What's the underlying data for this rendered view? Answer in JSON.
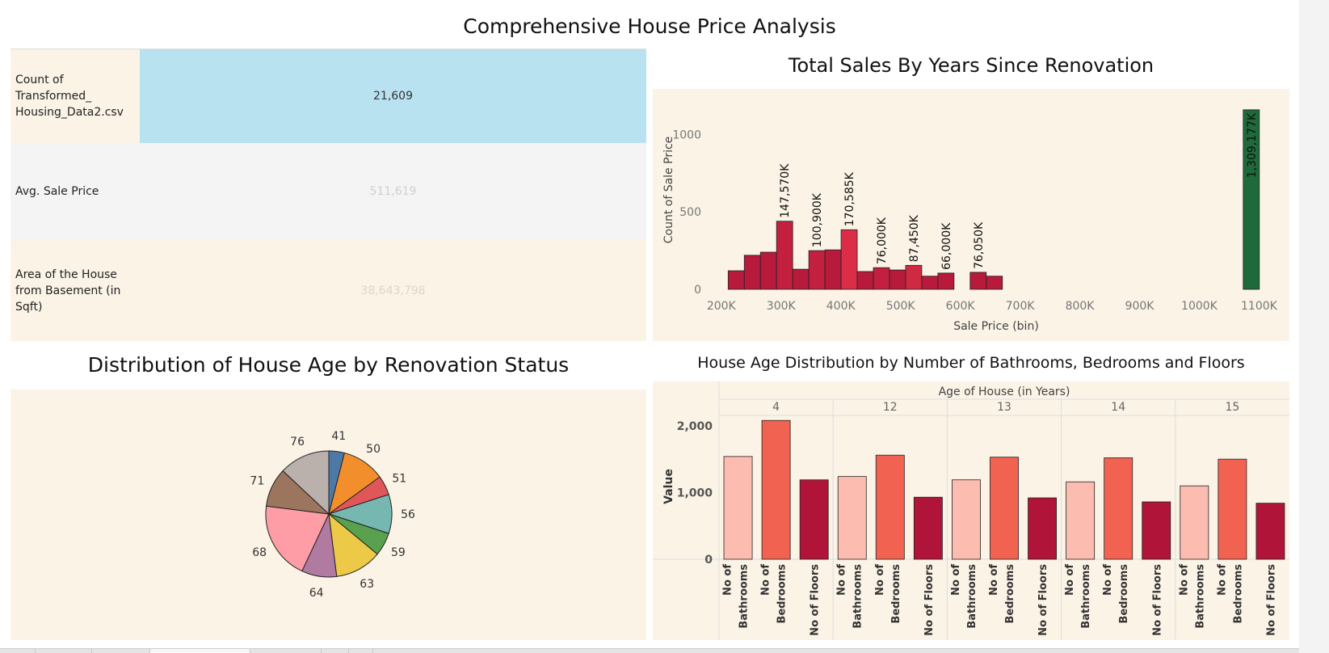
{
  "dashboard": {
    "title": "Comprehensive House Price Analysis"
  },
  "kpis": [
    {
      "label": "Count of Transformed_ Housing_Data2.csv",
      "value": "21,609",
      "bg": "#b9e2f1",
      "label_bg": "#faf3e6",
      "value_color": "#333333"
    },
    {
      "label": "Avg. Sale Price",
      "value": "511,619",
      "bg": "#f4f4f4",
      "label_bg": "#f4f4f4",
      "value_color": "#cfcfcf"
    },
    {
      "label": "Area of the House from Basement (in Sqft)",
      "value": "38,643,798",
      "bg": "#faf3e6",
      "label_bg": "#faf3e6",
      "value_color": "#dcd6cc"
    }
  ],
  "chart_data": [
    {
      "type": "bar",
      "title": "Total Sales By Years Since Renovation",
      "xlabel": "Sale Price (bin)",
      "ylabel": "Count of Sale Price",
      "x_ticks": [
        "200K",
        "300K",
        "400K",
        "500K",
        "600K",
        "700K",
        "800K",
        "900K",
        "1000K",
        "1100K"
      ],
      "x_tick_values": [
        200,
        300,
        400,
        500,
        600,
        700,
        800,
        900,
        1000,
        1100
      ],
      "y_ticks": [
        "0",
        "500",
        "1000"
      ],
      "y_tick_values": [
        0,
        500,
        1000
      ],
      "xlim": [
        180,
        1140
      ],
      "ylim": [
        0,
        1180
      ],
      "bin_width": 27,
      "bins": [
        {
          "x": 225,
          "count": 120,
          "color": "#b71a3a"
        },
        {
          "x": 252,
          "count": 220,
          "color": "#b71a3a"
        },
        {
          "x": 279,
          "count": 240,
          "color": "#b71a3a"
        },
        {
          "x": 306,
          "count": 440,
          "color": "#c3203f",
          "label": "147,570K"
        },
        {
          "x": 333,
          "count": 130,
          "color": "#b71a3a"
        },
        {
          "x": 360,
          "count": 250,
          "color": "#c3203f",
          "label": "100,900K"
        },
        {
          "x": 387,
          "count": 255,
          "color": "#b71a3a"
        },
        {
          "x": 414,
          "count": 385,
          "color": "#db2d45",
          "label": "170,585K"
        },
        {
          "x": 441,
          "count": 115,
          "color": "#b71a3a"
        },
        {
          "x": 468,
          "count": 140,
          "color": "#c3203f",
          "label": "76,000K"
        },
        {
          "x": 495,
          "count": 125,
          "color": "#b71a3a"
        },
        {
          "x": 522,
          "count": 155,
          "color": "#cf2a41",
          "label": "87,450K"
        },
        {
          "x": 549,
          "count": 85,
          "color": "#b71a3a"
        },
        {
          "x": 576,
          "count": 105,
          "color": "#b71a3a",
          "label": "66,000K"
        },
        {
          "x": 630,
          "count": 110,
          "color": "#b71a3a",
          "label": "76,050K"
        },
        {
          "x": 657,
          "count": 85,
          "color": "#b71a3a"
        },
        {
          "x": 1087,
          "count": 1160,
          "color": "#1f6a3a",
          "label": "1,309,177K",
          "label_inside": true
        }
      ]
    },
    {
      "type": "pie",
      "title": "Distribution of House Age by Renovation Status",
      "slices": [
        {
          "label": "41",
          "value": 4,
          "color": "#4e79a7"
        },
        {
          "label": "50",
          "value": 11,
          "color": "#f28e2b"
        },
        {
          "label": "51",
          "value": 5,
          "color": "#e15759"
        },
        {
          "label": "56",
          "value": 10,
          "color": "#76b7b2"
        },
        {
          "label": "59",
          "value": 6,
          "color": "#59a14f"
        },
        {
          "label": "63",
          "value": 12,
          "color": "#edc948"
        },
        {
          "label": "64",
          "value": 9,
          "color": "#b07aa1"
        },
        {
          "label": "68",
          "value": 20,
          "color": "#ff9da7"
        },
        {
          "label": "71",
          "value": 10,
          "color": "#9c755f"
        },
        {
          "label": "76",
          "value": 13,
          "color": "#bab0ac"
        }
      ]
    },
    {
      "type": "bar",
      "title": "House Age Distribution by Number of Bathrooms, Bedrooms and Floors",
      "group_header": "Age of House (in Years)",
      "ylabel": "Value",
      "y_ticks": [
        "0",
        "1,000",
        "2,000"
      ],
      "y_tick_values": [
        0,
        1000,
        2000
      ],
      "ylim": [
        0,
        2180
      ],
      "measures": [
        "No of Bathrooms",
        "No of Bedrooms",
        "No of Floors"
      ],
      "measure_labels": [
        [
          "No of",
          "Bathrooms"
        ],
        [
          "No of",
          "Bedrooms"
        ],
        [
          "No of Floors"
        ]
      ],
      "measure_colors": [
        "#fdbcb0",
        "#f26250",
        "#b01438"
      ],
      "groups": [
        {
          "name": "4",
          "values": [
            1540,
            2080,
            1190
          ]
        },
        {
          "name": "12",
          "values": [
            1240,
            1560,
            930
          ]
        },
        {
          "name": "13",
          "values": [
            1190,
            1530,
            920
          ]
        },
        {
          "name": "14",
          "values": [
            1160,
            1520,
            860
          ]
        },
        {
          "name": "15",
          "values": [
            1100,
            1500,
            840
          ]
        }
      ]
    }
  ]
}
